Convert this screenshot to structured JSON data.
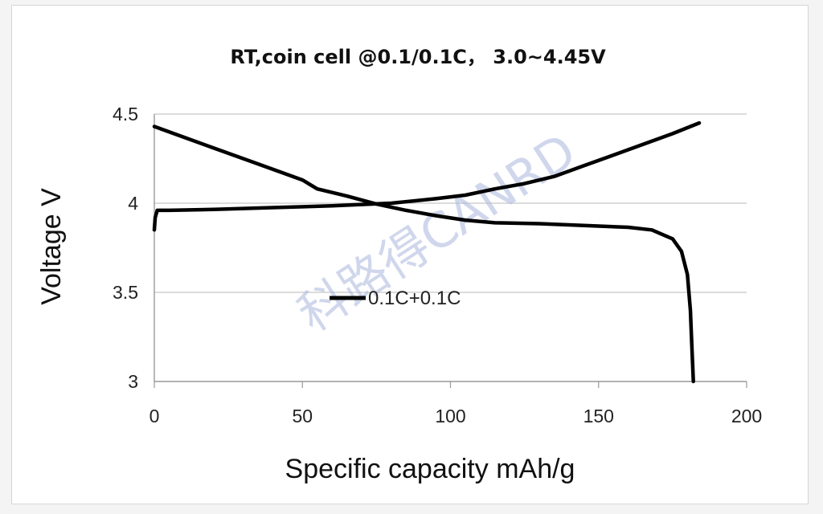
{
  "chart_data": {
    "type": "line",
    "title": "RT,coin cell @0.1/0.1C， 3.0~4.45V",
    "xlabel": "Specific capacity mAh/g",
    "ylabel": "Voltage V",
    "xlim": [
      0,
      200
    ],
    "ylim": [
      3,
      4.5
    ],
    "xticks": [
      "0",
      "50",
      "100",
      "150",
      "200"
    ],
    "yticks": [
      "3",
      "3.5",
      "4",
      "4.5"
    ],
    "grid": "horizontal",
    "legend_position": "center-left",
    "legend_label": "0.1C+0.1C",
    "watermark": "科路得CANRD",
    "series": [
      {
        "segment": "charge",
        "points": [
          [
            0,
            3.85
          ],
          [
            0.3,
            3.92
          ],
          [
            1,
            3.96
          ],
          [
            5,
            3.96
          ],
          [
            20,
            3.965
          ],
          [
            40,
            3.975
          ],
          [
            60,
            3.985
          ],
          [
            80,
            4.0
          ],
          [
            95,
            4.025
          ],
          [
            105,
            4.045
          ],
          [
            115,
            4.08
          ],
          [
            125,
            4.11
          ],
          [
            135,
            4.15
          ],
          [
            145,
            4.21
          ],
          [
            155,
            4.27
          ],
          [
            165,
            4.33
          ],
          [
            175,
            4.39
          ],
          [
            184,
            4.45
          ]
        ]
      },
      {
        "segment": "discharge",
        "points": [
          [
            0,
            4.43
          ],
          [
            10,
            4.37
          ],
          [
            20,
            4.31
          ],
          [
            30,
            4.25
          ],
          [
            40,
            4.19
          ],
          [
            50,
            4.13
          ],
          [
            55,
            4.08
          ],
          [
            65,
            4.04
          ],
          [
            75,
            3.995
          ],
          [
            85,
            3.96
          ],
          [
            95,
            3.93
          ],
          [
            105,
            3.905
          ],
          [
            115,
            3.89
          ],
          [
            130,
            3.885
          ],
          [
            145,
            3.875
          ],
          [
            160,
            3.865
          ],
          [
            168,
            3.85
          ],
          [
            175,
            3.8
          ],
          [
            178,
            3.73
          ],
          [
            180,
            3.6
          ],
          [
            181,
            3.4
          ],
          [
            181.5,
            3.2
          ],
          [
            182,
            3.0
          ]
        ]
      }
    ]
  }
}
